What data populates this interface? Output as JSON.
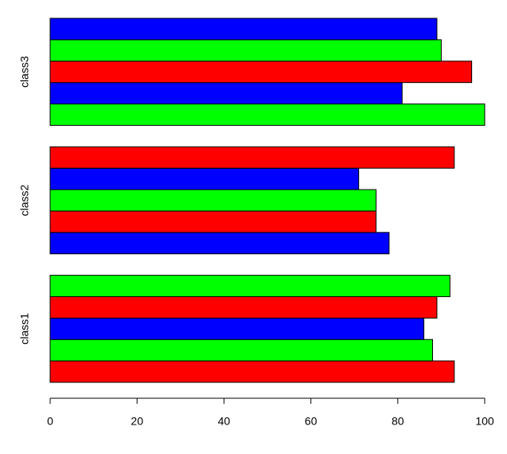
{
  "chart_data": {
    "type": "bar",
    "orientation": "horizontal",
    "categories": [
      "class1",
      "class2",
      "class3"
    ],
    "series": [
      {
        "values": [
          93,
          78,
          100
        ]
      },
      {
        "values": [
          88,
          75,
          81
        ]
      },
      {
        "values": [
          86,
          75,
          97
        ]
      },
      {
        "values": [
          89,
          71,
          90
        ]
      },
      {
        "values": [
          92,
          93,
          89
        ]
      }
    ],
    "bar_colors": [
      "#ff0000",
      "#00ff00",
      "#0000ff"
    ],
    "xlim": [
      0,
      100
    ],
    "xticks": [
      0,
      20,
      40,
      60,
      80,
      100
    ]
  }
}
